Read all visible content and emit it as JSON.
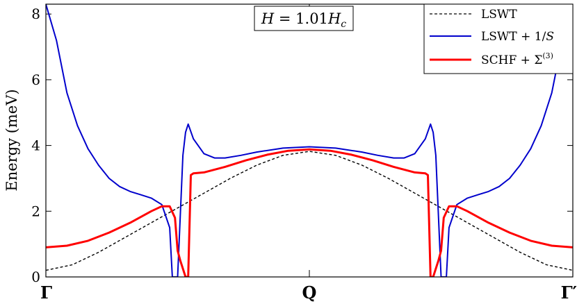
{
  "chart_data": {
    "type": "line",
    "title": "",
    "xlabel": "",
    "ylabel": "Energy (meV)",
    "ylim": [
      0,
      8.3
    ],
    "xlim": [
      0,
      1
    ],
    "grid": false,
    "legend_position": "top-right",
    "annotation": "H = 1.01H_c",
    "yticks": [
      0,
      2,
      4,
      6,
      8
    ],
    "xticks": [
      {
        "x": 0,
        "label": "Γ"
      },
      {
        "x": 0.5,
        "label": "Q"
      },
      {
        "x": 1,
        "label": "Γ′"
      }
    ],
    "series": [
      {
        "name": "LSWT",
        "color": "#000000",
        "style": "dashed",
        "x": [
          0,
          0.05,
          0.1,
          0.15,
          0.2,
          0.25,
          0.3,
          0.35,
          0.4,
          0.45,
          0.5,
          0.55,
          0.6,
          0.65,
          0.7,
          0.75,
          0.8,
          0.85,
          0.9,
          0.95,
          1
        ],
        "y": [
          0.2,
          0.37,
          0.75,
          1.2,
          1.65,
          2.1,
          2.55,
          3.0,
          3.4,
          3.7,
          3.82,
          3.7,
          3.4,
          3.0,
          2.55,
          2.1,
          1.65,
          1.2,
          0.75,
          0.37,
          0.2
        ]
      },
      {
        "name": "LSWT + 1/S",
        "color": "#0000cc",
        "style": "solid",
        "x": [
          0.0,
          0.02,
          0.04,
          0.06,
          0.08,
          0.1,
          0.12,
          0.14,
          0.16,
          0.18,
          0.2,
          0.22,
          0.235,
          0.24,
          0.25,
          0.26,
          0.265,
          0.27,
          0.28,
          0.3,
          0.32,
          0.34,
          0.37,
          0.4,
          0.45,
          0.5,
          0.55,
          0.6,
          0.63,
          0.66,
          0.68,
          0.7,
          0.72,
          0.73,
          0.735,
          0.74,
          0.75,
          0.76,
          0.765,
          0.78,
          0.8,
          0.82,
          0.84,
          0.86,
          0.88,
          0.9,
          0.92,
          0.94,
          0.96,
          0.98,
          1.0
        ],
        "y": [
          8.3,
          7.2,
          5.6,
          4.6,
          3.9,
          3.4,
          3.0,
          2.75,
          2.6,
          2.5,
          2.4,
          2.2,
          1.5,
          0.0,
          0.0,
          3.7,
          4.4,
          4.65,
          4.2,
          3.75,
          3.62,
          3.62,
          3.7,
          3.8,
          3.92,
          3.96,
          3.92,
          3.8,
          3.7,
          3.62,
          3.62,
          3.75,
          4.2,
          4.65,
          4.4,
          3.7,
          0.0,
          0.0,
          1.5,
          2.2,
          2.4,
          2.5,
          2.6,
          2.75,
          3.0,
          3.4,
          3.9,
          4.6,
          5.6,
          7.2,
          8.3
        ]
      },
      {
        "name": "SCHF + Σ(3)",
        "color": "#ff0000",
        "style": "solid",
        "x": [
          0.0,
          0.04,
          0.08,
          0.12,
          0.16,
          0.2,
          0.22,
          0.235,
          0.245,
          0.25,
          0.255,
          0.265,
          0.27,
          0.275,
          0.28,
          0.3,
          0.34,
          0.38,
          0.42,
          0.46,
          0.5,
          0.54,
          0.58,
          0.62,
          0.66,
          0.7,
          0.72,
          0.725,
          0.73,
          0.735,
          0.745,
          0.75,
          0.755,
          0.765,
          0.78,
          0.8,
          0.84,
          0.88,
          0.92,
          0.96,
          1.0
        ],
        "y": [
          0.9,
          0.95,
          1.1,
          1.35,
          1.65,
          2.0,
          2.15,
          2.15,
          1.8,
          0.8,
          0.5,
          0.0,
          0.0,
          3.1,
          3.15,
          3.18,
          3.35,
          3.55,
          3.72,
          3.84,
          3.88,
          3.84,
          3.72,
          3.55,
          3.35,
          3.18,
          3.15,
          3.1,
          0.0,
          0.0,
          0.5,
          0.8,
          1.8,
          2.15,
          2.15,
          2.0,
          1.65,
          1.35,
          1.1,
          0.95,
          0.9
        ]
      }
    ]
  }
}
